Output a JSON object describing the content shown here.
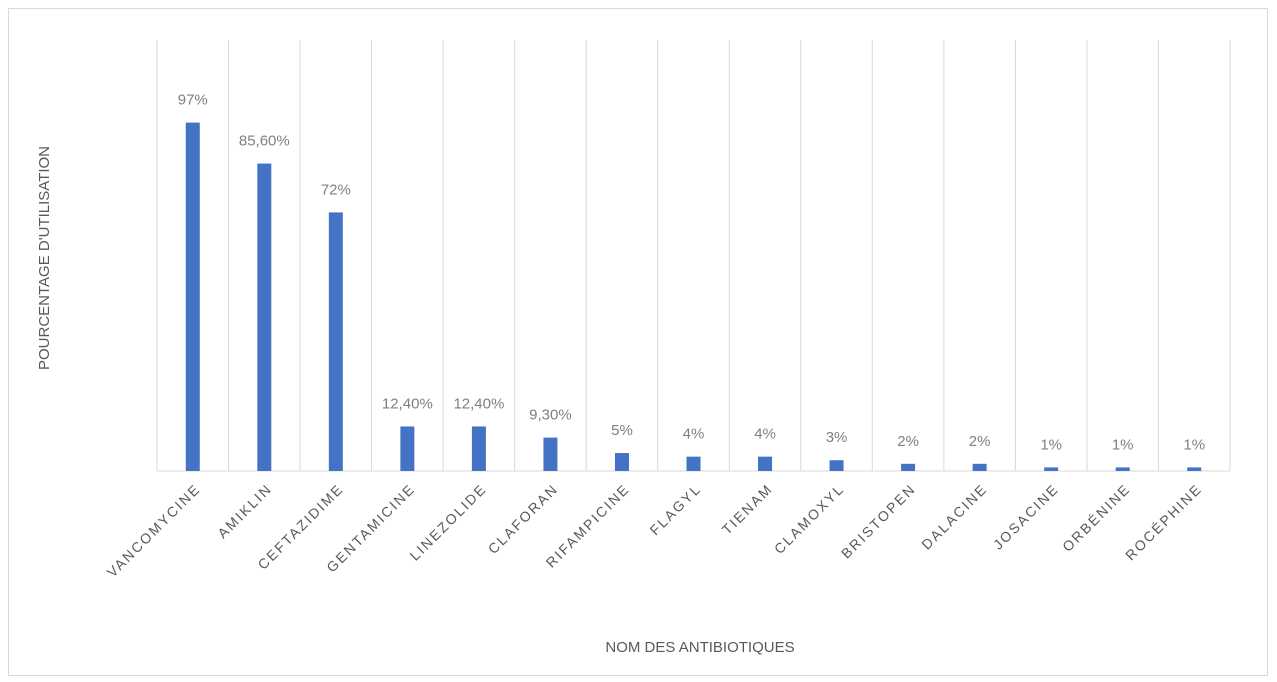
{
  "chart_data": {
    "type": "bar",
    "categories": [
      "VANCOMYCINE",
      "AMIKLIN",
      "CEFTAZIDIME",
      "GENTAMICINE",
      "LINEZOLIDE",
      "CLAFORAN",
      "RIFAMPICINE",
      "FLAGYL",
      "TIENAM",
      "CLAMOXYL",
      "BRISTOPEN",
      "DALACINE",
      "JOSACINE",
      "ORBÉNINE",
      "ROCÉPHINE"
    ],
    "values": [
      97,
      85.6,
      72,
      12.4,
      12.4,
      9.3,
      5,
      4,
      4,
      3,
      2,
      2,
      1,
      1,
      1
    ],
    "value_labels": [
      "97%",
      "85,60%",
      "72%",
      "12,40%",
      "12,40%",
      "9,30%",
      "5%",
      "4%",
      "4%",
      "3%",
      "2%",
      "2%",
      "1%",
      "1%",
      "1%"
    ],
    "color": "#4472c4",
    "ylim": [
      0,
      120
    ],
    "xlabel": "NOM DES ANTIBIOTIQUES",
    "ylabel": "POURCENTAGE D'UTILISATION",
    "grid": true
  }
}
